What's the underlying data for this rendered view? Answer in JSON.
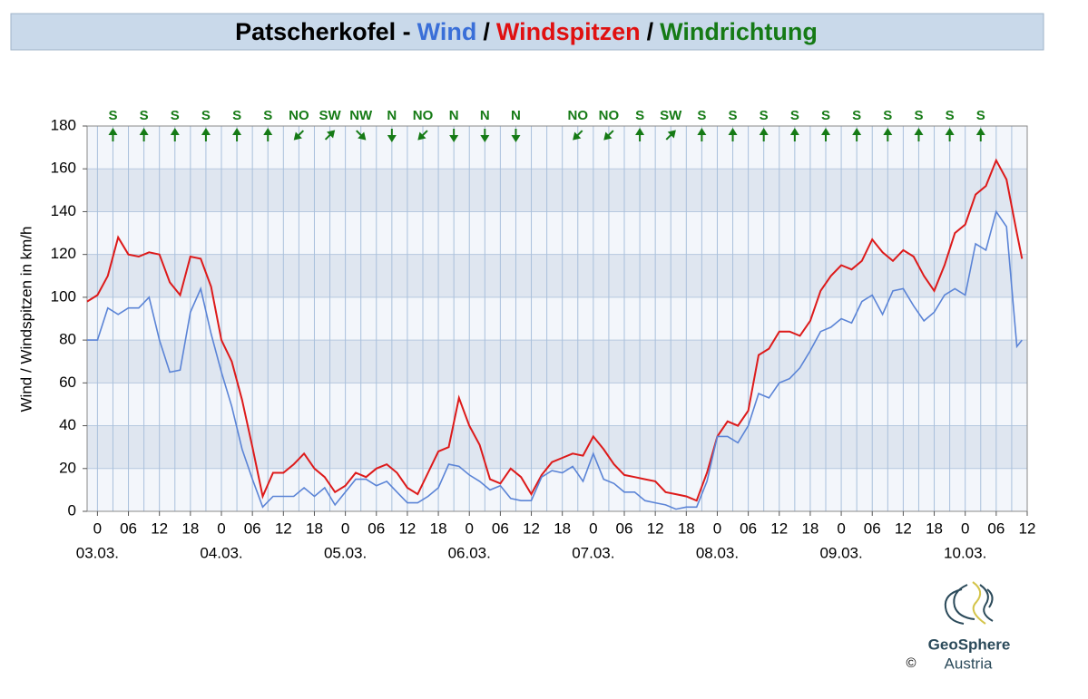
{
  "chart_data": {
    "type": "line",
    "title_prefix": "Patscherkofel -",
    "title_separator": "/",
    "ylabel": "Wind / Windspitzen in km/h",
    "x": [
      -2,
      0,
      2,
      4,
      6,
      8,
      10,
      12,
      14,
      16,
      18,
      20,
      22,
      24,
      26,
      28,
      30,
      32,
      34,
      36,
      38,
      40,
      42,
      44,
      46,
      48,
      50,
      52,
      54,
      56,
      58,
      60,
      62,
      64,
      66,
      68,
      70,
      72,
      74,
      76,
      78,
      80,
      82,
      84,
      86,
      88,
      90,
      92,
      94,
      96,
      98,
      100,
      102,
      104,
      106,
      108,
      110,
      112,
      114,
      116,
      118,
      120,
      122,
      124,
      126,
      128,
      130,
      132,
      134,
      136,
      138,
      140,
      142,
      144,
      146,
      148,
      150,
      152,
      154,
      156,
      158,
      160,
      162,
      164,
      166,
      168,
      170,
      172,
      174,
      176,
      178,
      179
    ],
    "series": [
      {
        "name": "Wind",
        "color": "#5b84d6",
        "values": [
          80,
          80,
          95,
          92,
          95,
          95,
          100,
          80,
          65,
          66,
          93,
          104,
          83,
          65,
          49,
          29,
          15,
          2,
          7,
          7,
          7,
          11,
          7,
          11,
          3,
          9,
          15,
          15,
          12,
          14,
          9,
          4,
          4,
          7,
          11,
          22,
          21,
          17,
          14,
          10,
          12,
          6,
          5,
          5,
          16,
          19,
          18,
          21,
          14,
          27,
          15,
          13,
          9,
          9,
          5,
          4,
          3,
          1,
          2,
          2,
          14,
          35,
          35,
          32,
          40,
          55,
          53,
          60,
          62,
          67,
          75,
          84,
          86,
          90,
          88,
          98,
          101,
          92,
          103,
          104,
          96,
          89,
          93,
          101,
          104,
          101,
          125,
          122,
          140,
          133,
          77,
          80
        ]
      },
      {
        "name": "Windspitzen",
        "color": "#dd1a1a",
        "values": [
          98,
          101,
          110,
          128,
          120,
          119,
          121,
          120,
          107,
          101,
          119,
          118,
          105,
          80,
          70,
          52,
          30,
          7,
          18,
          18,
          22,
          27,
          20,
          16,
          9,
          12,
          18,
          16,
          20,
          22,
          18,
          11,
          8,
          18,
          28,
          30,
          53,
          40,
          31,
          15,
          13,
          20,
          16,
          8,
          17,
          23,
          25,
          27,
          26,
          35,
          29,
          22,
          17,
          16,
          15,
          14,
          9,
          8,
          7,
          5,
          18,
          35,
          42,
          40,
          47,
          73,
          76,
          84,
          84,
          82,
          89,
          103,
          110,
          115,
          113,
          117,
          127,
          121,
          117,
          122,
          119,
          110,
          103,
          115,
          130,
          134,
          148,
          152,
          164,
          155,
          130,
          118
        ]
      }
    ],
    "wind_direction": {
      "name": "Windrichtung",
      "color": "#157a15",
      "x": [
        3,
        9,
        15,
        21,
        27,
        33,
        39,
        45,
        51,
        57,
        63,
        69,
        75,
        81,
        93,
        99,
        105,
        111,
        117,
        123,
        129,
        135,
        141,
        147,
        153,
        159,
        165,
        171
      ],
      "labels": [
        "S",
        "S",
        "S",
        "S",
        "S",
        "S",
        "NO",
        "SW",
        "NW",
        "N",
        "NO",
        "N",
        "N",
        "N",
        "NO",
        "NO",
        "S",
        "SW",
        "S",
        "S",
        "S",
        "S",
        "S",
        "S",
        "S",
        "S",
        "S",
        "S"
      ]
    },
    "xlim": [
      -2,
      180
    ],
    "xticks": [
      {
        "value": 0,
        "label": "0"
      },
      {
        "value": 6,
        "label": "06"
      },
      {
        "value": 12,
        "label": "12"
      },
      {
        "value": 18,
        "label": "18"
      },
      {
        "value": 24,
        "label": "0"
      },
      {
        "value": 30,
        "label": "06"
      },
      {
        "value": 36,
        "label": "12"
      },
      {
        "value": 42,
        "label": "18"
      },
      {
        "value": 48,
        "label": "0"
      },
      {
        "value": 54,
        "label": "06"
      },
      {
        "value": 60,
        "label": "12"
      },
      {
        "value": 66,
        "label": "18"
      },
      {
        "value": 72,
        "label": "0"
      },
      {
        "value": 78,
        "label": "06"
      },
      {
        "value": 84,
        "label": "12"
      },
      {
        "value": 90,
        "label": "18"
      },
      {
        "value": 96,
        "label": "0"
      },
      {
        "value": 102,
        "label": "06"
      },
      {
        "value": 108,
        "label": "12"
      },
      {
        "value": 114,
        "label": "18"
      },
      {
        "value": 120,
        "label": "0"
      },
      {
        "value": 126,
        "label": "06"
      },
      {
        "value": 132,
        "label": "12"
      },
      {
        "value": 138,
        "label": "18"
      },
      {
        "value": 144,
        "label": "0"
      },
      {
        "value": 150,
        "label": "06"
      },
      {
        "value": 156,
        "label": "12"
      },
      {
        "value": 162,
        "label": "18"
      },
      {
        "value": 168,
        "label": "0"
      },
      {
        "value": 174,
        "label": "06"
      },
      {
        "value": 180,
        "label": "12"
      }
    ],
    "x_minor_ticks": [
      3,
      9,
      15,
      21,
      27,
      33,
      39,
      45,
      51,
      57,
      63,
      69,
      75,
      81,
      87,
      93,
      99,
      105,
      111,
      117,
      123,
      129,
      135,
      141,
      147,
      153,
      159,
      165,
      171,
      177
    ],
    "day_labels": [
      {
        "value": 0,
        "label": "03.03."
      },
      {
        "value": 24,
        "label": "04.03."
      },
      {
        "value": 48,
        "label": "05.03."
      },
      {
        "value": 72,
        "label": "06.03."
      },
      {
        "value": 96,
        "label": "07.03."
      },
      {
        "value": 120,
        "label": "08.03."
      },
      {
        "value": 144,
        "label": "09.03."
      },
      {
        "value": 168,
        "label": "10.03."
      }
    ],
    "ylim": [
      0,
      180
    ],
    "yticks": [
      0,
      20,
      40,
      60,
      80,
      100,
      120,
      140,
      160,
      180
    ],
    "grid": true
  },
  "logo": {
    "name": "GeoSphere",
    "subtitle": "Austria",
    "copyright": "©"
  }
}
